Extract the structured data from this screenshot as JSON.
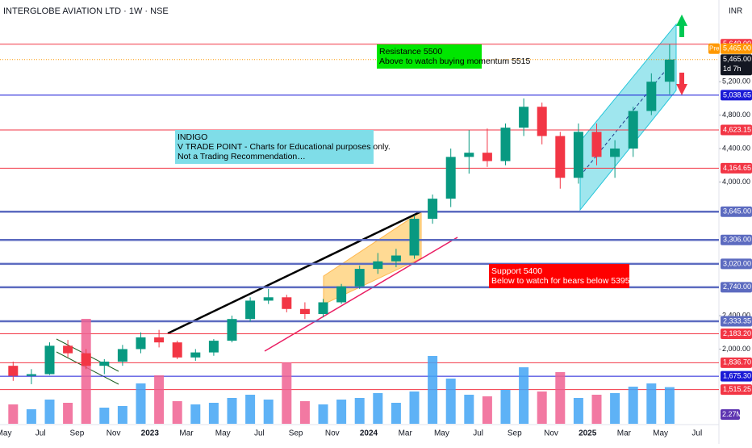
{
  "chart_data": {
    "type": "candlestick",
    "title": "INTERGLOBE AVIATION LTD · 1W · NSE",
    "currency": "INR",
    "categories": [
      "May",
      null,
      "Jul",
      null,
      "Sep",
      null,
      "Nov",
      null,
      "2023",
      null,
      "Mar",
      null,
      "May",
      null,
      "Jul",
      null,
      "Sep",
      null,
      "Nov",
      null,
      "2024",
      null,
      "Mar",
      null,
      "May",
      null,
      "Jul",
      null,
      "Sep",
      null,
      "Nov",
      null,
      "2025",
      null,
      "Mar",
      null,
      "May",
      null,
      "Jul"
    ],
    "open": [
      1800,
      1680,
      1700,
      2040,
      1950,
      1800,
      1850,
      2000,
      2140,
      2080,
      1900,
      1960,
      2100,
      2360,
      2580,
      2620,
      2480,
      2420,
      2560,
      2750,
      2960,
      3050,
      3120,
      3560,
      3800,
      4300,
      4350,
      4250,
      4650,
      4900,
      4550,
      4050,
      4600,
      4300,
      4400,
      4850,
      5200,
      null,
      null
    ],
    "high": [
      1850,
      1760,
      2080,
      2110,
      2000,
      1880,
      2050,
      2200,
      2230,
      2100,
      2000,
      2120,
      2400,
      2620,
      2720,
      2650,
      2560,
      2600,
      2780,
      3000,
      3150,
      3200,
      3600,
      3850,
      4400,
      4620,
      4640,
      4700,
      5000,
      4950,
      4600,
      4700,
      4700,
      4500,
      4900,
      5300,
      5649,
      null,
      null
    ],
    "low": [
      1620,
      1580,
      1690,
      1900,
      1760,
      1700,
      1800,
      1950,
      2020,
      1880,
      1860,
      1920,
      2080,
      2330,
      2540,
      2440,
      2360,
      2380,
      2540,
      2720,
      2900,
      2980,
      3080,
      3500,
      3700,
      4100,
      4180,
      4200,
      4550,
      4450,
      3920,
      3980,
      4200,
      4050,
      4300,
      4800,
      5050,
      null,
      null
    ],
    "close": [
      1680,
      1700,
      2040,
      1950,
      1800,
      1850,
      2000,
      2140,
      2080,
      1900,
      1960,
      2100,
      2360,
      2580,
      2620,
      2480,
      2420,
      2560,
      2750,
      2960,
      3050,
      3120,
      3560,
      3800,
      4300,
      4350,
      4250,
      4650,
      4900,
      4550,
      4050,
      4600,
      4300,
      4400,
      4850,
      5200,
      5465,
      null,
      null
    ],
    "up_color": "#089981",
    "down_color": "#f23645",
    "ylim": [
      1106,
      6178
    ],
    "yticks": [
      {
        "value": 5200,
        "label": "5,200.00"
      },
      {
        "value": 4800,
        "label": "4,800.00"
      },
      {
        "value": 4400,
        "label": "4,400.00"
      },
      {
        "value": 4000,
        "label": "4,000.00"
      },
      {
        "value": 2400,
        "label": "2,400.00"
      },
      {
        "value": 2000,
        "label": "2,000.00"
      }
    ],
    "levels": [
      {
        "value": 5649,
        "label": "5,649.00",
        "color": "#f23645"
      },
      {
        "value": 5038.65,
        "label": "5,038.65",
        "color": "#1a1ad6"
      },
      {
        "value": 4623.15,
        "label": "4,623.15",
        "color": "#f23645"
      },
      {
        "value": 4164.65,
        "label": "4,164.65",
        "color": "#f23645"
      },
      {
        "value": 3645,
        "label": "3,645.00",
        "color": "#5c6bc0"
      },
      {
        "value": 3306,
        "label": "3,306.00",
        "color": "#5c6bc0"
      },
      {
        "value": 3020,
        "label": "3,020.00",
        "color": "#5c6bc0"
      },
      {
        "value": 2740,
        "label": "2,740.00",
        "color": "#5c6bc0"
      },
      {
        "value": 2333.35,
        "label": "2,333.35",
        "color": "#5c6bc0"
      },
      {
        "value": 2183.2,
        "label": "2,183.20",
        "color": "#f23645"
      },
      {
        "value": 1836.7,
        "label": "1,836.70",
        "color": "#f23645"
      },
      {
        "value": 1675.3,
        "label": "1,675.30",
        "color": "#1a1ad6"
      },
      {
        "value": 1515.25,
        "label": "1,515.25",
        "color": "#f23645"
      }
    ],
    "last_price": {
      "value": 5465,
      "label": "5,465.00"
    },
    "pre_badge": "Pre",
    "countdown": "1d 7h",
    "volume": {
      "values": [
        1.2,
        0.9,
        1.5,
        1.3,
        6.5,
        1.0,
        1.1,
        2.5,
        3.0,
        1.4,
        1.2,
        1.3,
        1.6,
        1.8,
        1.5,
        3.8,
        1.4,
        1.2,
        1.5,
        1.6,
        1.9,
        1.3,
        2.0,
        4.2,
        2.8,
        1.8,
        1.7,
        2.1,
        3.5,
        2.0,
        3.2,
        1.6,
        1.8,
        1.9,
        2.3,
        2.5,
        2.27,
        null,
        null
      ],
      "ylim": [
        0,
        8
      ],
      "up_color": "#42a5f5",
      "down_color": "#f06292",
      "last": {
        "value": 2.27,
        "label": "2.27M"
      }
    },
    "annotations": [
      {
        "lines": [
          "Resistance  5500",
          "Above to watch buying momentum 5515"
        ],
        "color": "#00e600",
        "text_color": "#000000"
      },
      {
        "lines": [
          "INDIGO",
          "V TRADE POINT - Charts for Educational purposes only.",
          "Not a Trading Recommendation…"
        ],
        "color": "#7fdde8",
        "text_color": "#000000"
      },
      {
        "lines": [
          "Support 5400",
          "Below to watch for bears below 5395"
        ],
        "color": "#ff0000",
        "text_color": "#ffffff"
      }
    ]
  }
}
